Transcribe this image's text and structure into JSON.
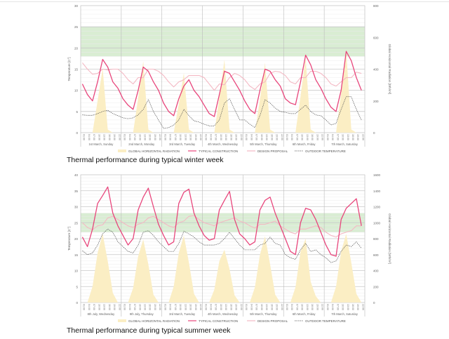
{
  "chart_data": [
    {
      "type": "line",
      "title": "Thermal performance during typical winter week",
      "ylabel": "Temperature [C°]",
      "y2label": "Global Horizontal Radiation [Wh/m²]",
      "ylim": [
        0,
        30
      ],
      "yticks": [
        0,
        5,
        10,
        15,
        20,
        25,
        30
      ],
      "y2lim": [
        0,
        800
      ],
      "y2ticks": [
        0,
        200,
        400,
        600,
        800
      ],
      "comfort_band": [
        18,
        25
      ],
      "days": [
        "1st March, Sunday",
        "2nd March, Monday",
        "3rd March, Tuesday",
        "4th March, Wednesday",
        "5th March, Thursday",
        "6th March, Friday",
        "7th March, Saturday"
      ],
      "hours": [
        "01:00",
        "04:00",
        "07:00",
        "10:00",
        "13:00",
        "16:00",
        "19:00",
        "22:00"
      ],
      "legend": [
        "GLOBAL HORIZONTAL RADIATION",
        "TYPICAL CONSTRUCTION",
        "DESIGN PROPOSAL",
        "OUTDOOR TEMPERATURE"
      ],
      "series": [
        {
          "name": "GLOBAL HORIZONTAL RADIATION",
          "axis": "right",
          "values": [
            0,
            0,
            0,
            200,
            405,
            20,
            0,
            0,
            0,
            0,
            0,
            220,
            450,
            20,
            0,
            0,
            0,
            0,
            0,
            180,
            375,
            20,
            0,
            0,
            0,
            0,
            0,
            220,
            460,
            20,
            0,
            0,
            0,
            0,
            0,
            210,
            440,
            20,
            0,
            0,
            0,
            0,
            0,
            230,
            470,
            20,
            0,
            0,
            0,
            0,
            0,
            250,
            520,
            20,
            0,
            0
          ]
        },
        {
          "name": "TYPICAL CONSTRUCTION",
          "axis": "left",
          "values": [
            11.5,
            9,
            7.5,
            12,
            17.3,
            15.5,
            12,
            10.5,
            8,
            6.5,
            5.5,
            10,
            15.5,
            14.5,
            12,
            10,
            7,
            5,
            4,
            8,
            11,
            12.5,
            10,
            8.5,
            6.5,
            4.5,
            3.8,
            9,
            14.5,
            14,
            12,
            10,
            7.5,
            5.5,
            4.5,
            10,
            15,
            14.5,
            12.5,
            11,
            8,
            7,
            6.6,
            12,
            18.3,
            16,
            12.5,
            10.5,
            8,
            6,
            5,
            10,
            19.2,
            17,
            13,
            10
          ]
        },
        {
          "name": "DESIGN PROPOSAL",
          "axis": "left",
          "values": [
            16.5,
            15,
            13.8,
            14,
            15,
            14.8,
            15,
            15,
            14,
            12.5,
            11.5,
            13,
            13,
            15,
            15,
            14.5,
            13.5,
            12,
            10.8,
            12,
            12.5,
            13.5,
            13.5,
            13.5,
            13,
            11.5,
            10,
            11.5,
            11.3,
            13,
            14,
            13.5,
            12.5,
            11,
            10.2,
            11.5,
            12,
            14,
            14.5,
            14.3,
            13.5,
            12,
            11.5,
            13,
            13,
            14.5,
            14.5,
            14,
            13,
            11.5,
            11,
            12,
            13,
            13,
            14.3,
            14
          ]
        },
        {
          "name": "OUTDOOR TEMPERATURE",
          "axis": "left",
          "values": [
            4.2,
            4.1,
            4.1,
            4.5,
            5,
            5.3,
            4.5,
            4,
            3.5,
            3.3,
            3.5,
            4.2,
            5.5,
            7.8,
            5,
            3,
            1,
            1.2,
            1.8,
            3,
            5.5,
            4,
            2.8,
            2.5,
            2,
            1.6,
            1.6,
            3,
            7,
            8,
            5.5,
            3,
            3,
            2,
            1.2,
            4,
            7.8,
            7,
            5.8,
            5,
            4.8,
            4.5,
            4.5,
            5.5,
            6.5,
            5,
            4.2,
            4,
            3,
            1.8,
            2.2,
            5.5,
            8.5,
            8.5,
            5.5,
            3
          ]
        }
      ]
    },
    {
      "type": "line",
      "title": "Thermal performance during typical summer week",
      "ylabel": "Temperature [C°]",
      "y2label": "Global Horizontal Radiation [Wh/m²]",
      "ylim": [
        0,
        40
      ],
      "yticks": [
        0,
        5,
        10,
        15,
        20,
        25,
        30,
        35,
        40
      ],
      "y2lim": [
        0,
        1600
      ],
      "y2ticks": [
        0,
        200,
        400,
        600,
        800,
        1000,
        1200,
        1400,
        1600
      ],
      "comfort_band": [
        22,
        28
      ],
      "days": [
        "8th July, Wednesday",
        "9th July, Thursday",
        "3rd March, Tuesday",
        "4th March, Wednesday",
        "5th March, Thursday",
        "6th March, Friday",
        "7th March, Saturday"
      ],
      "hours": [
        "01:00",
        "04:00",
        "07:00",
        "10:00",
        "13:00",
        "16:00",
        "19:00",
        "22:00"
      ],
      "legend": [
        "GLOBAL HORIZONTAL RADIATION",
        "TYPICAL CONSTRUCTION",
        "DESIGN PROPOSAL",
        "OUTDOOR TEMPERATURE"
      ],
      "series": [
        {
          "name": "GLOBAL HORIZONTAL RADIATION",
          "axis": "right",
          "values": [
            0,
            0,
            200,
            620,
            860,
            520,
            120,
            0,
            0,
            0,
            180,
            580,
            790,
            480,
            100,
            0,
            0,
            0,
            200,
            620,
            840,
            500,
            110,
            0,
            0,
            0,
            160,
            520,
            660,
            420,
            90,
            0,
            0,
            0,
            190,
            600,
            830,
            480,
            100,
            0,
            0,
            0,
            190,
            640,
            800,
            260,
            80,
            0,
            0,
            0,
            200,
            640,
            860,
            500,
            110,
            0
          ]
        },
        {
          "name": "TYPICAL CONSTRUCTION",
          "axis": "left",
          "values": [
            20.5,
            17.5,
            23,
            31,
            33.5,
            36.2,
            28,
            24,
            21,
            18,
            20,
            29,
            33,
            35.8,
            30,
            24.5,
            21,
            18,
            19,
            31,
            34.5,
            35.5,
            28,
            24,
            21,
            19.5,
            20,
            29,
            32,
            34.8,
            26,
            21.5,
            20,
            18,
            19,
            29,
            32,
            33,
            28,
            24,
            20,
            16,
            15,
            25,
            29.5,
            29,
            26,
            22,
            18,
            15,
            14.5,
            26,
            29.5,
            31,
            32.5,
            24
          ]
        },
        {
          "name": "DESIGN PROPOSAL",
          "axis": "left",
          "values": [
            25,
            23.5,
            22.8,
            24,
            24.3,
            26.5,
            27,
            26,
            25,
            24,
            23.5,
            24.5,
            25,
            26.5,
            27,
            26,
            25,
            24,
            23.5,
            25,
            25.5,
            27,
            27.2,
            26,
            25,
            24.5,
            24,
            25,
            25.5,
            26,
            26.5,
            25.5,
            25,
            24,
            23.3,
            24.5,
            24.5,
            25,
            25.5,
            24,
            23,
            22,
            21.5,
            23,
            23,
            23.5,
            24,
            23.5,
            22,
            21,
            20.5,
            21.5,
            22,
            22.5,
            24,
            24
          ]
        },
        {
          "name": "OUTDOOR TEMPERATURE",
          "axis": "left",
          "values": [
            16.2,
            15,
            15.5,
            18,
            21.5,
            23,
            22,
            19,
            17.5,
            16,
            15.5,
            18,
            22,
            22.5,
            21,
            19,
            17.5,
            16,
            16,
            18.5,
            22.3,
            21.5,
            20.5,
            19,
            18,
            18,
            18,
            18.5,
            20,
            22,
            20,
            18,
            16.5,
            16.5,
            16.5,
            18,
            18.5,
            20.5,
            18.5,
            18,
            15,
            14,
            13.5,
            16.5,
            18.5,
            16,
            16.5,
            15,
            14,
            12.5,
            13,
            16,
            18,
            17.5,
            19,
            17
          ]
        }
      ]
    }
  ],
  "colors": {
    "radiation": "#fbeec4",
    "typical": "#e8467c",
    "proposal": "#f4b9c4",
    "outdoor": "#555555",
    "comfort": "#cfe8c8",
    "grid": "#dddddd"
  }
}
